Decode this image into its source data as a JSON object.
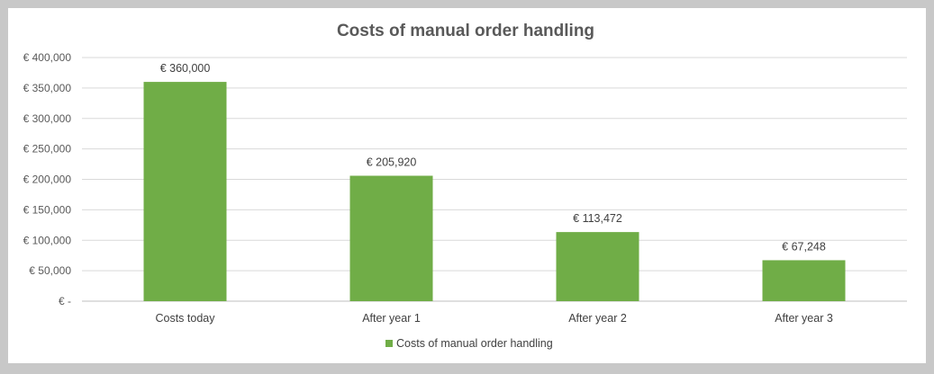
{
  "chart_data": {
    "type": "bar",
    "title": "Costs of manual order handling",
    "xlabel": "",
    "ylabel": "",
    "categories": [
      "Costs today",
      "After year 1",
      "After year 2",
      "After year 3"
    ],
    "series": [
      {
        "name": "Costs of manual order handling",
        "values": [
          360000,
          205920,
          113472,
          67248
        ],
        "color": "#70ad47"
      }
    ],
    "data_labels": [
      "€ 360,000",
      "€ 205,920",
      "€ 113,472",
      "€ 67,248"
    ],
    "ylim": [
      0,
      400000
    ],
    "y_ticks": [
      0,
      50000,
      100000,
      150000,
      200000,
      250000,
      300000,
      350000,
      400000
    ],
    "y_tick_labels": [
      "€ -",
      "€ 50,000",
      "€ 100,000",
      "€ 150,000",
      "€ 200,000",
      "€ 250,000",
      "€ 300,000",
      "€ 350,000",
      "€ 400,000"
    ],
    "grid": true,
    "legend_position": "bottom"
  }
}
